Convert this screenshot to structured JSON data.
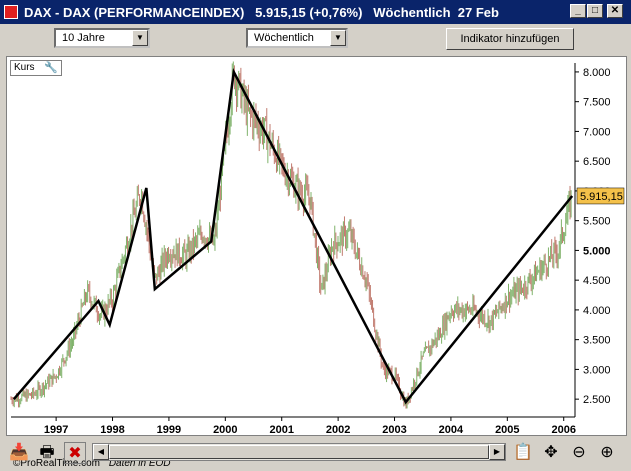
{
  "window": {
    "title": "DAX - DAX (PERFORMANCEINDEX)   5.915,15 (+0,76%)   Wöchentlich  27 Feb",
    "minimize": "_",
    "maximize": "□",
    "close": "✕"
  },
  "toolbar": {
    "period_value": "10 Jahre",
    "interval_value": "Wöchentlich",
    "add_indicator_label": "Indikator hinzufügen"
  },
  "chart_panel": {
    "label": "Kurs",
    "price_badge": "5.915,15",
    "credit": "©ProRealTime.com",
    "source": "Daten in EOD"
  },
  "icons": {
    "wrench": "wrench-icon",
    "left_tool": "tray-icon",
    "print": "printer-icon",
    "delete": "delete-icon",
    "export": "export-icon",
    "move": "move-icon",
    "zoom_out": "zoom-out-icon",
    "zoom_in": "zoom-in-icon"
  },
  "colors": {
    "title_bar": "#0a246a",
    "candle_up": "#7fb26a",
    "candle_down": "#c07a6e",
    "trend_line": "#000000",
    "badge_bg": "#f4c14a"
  },
  "chart_data": {
    "type": "candlestick",
    "x_ticks": [
      "1997",
      "1998",
      "1999",
      "2000",
      "2001",
      "2002",
      "2003",
      "2004",
      "2005",
      "2006"
    ],
    "y_ticks": [
      "2.500",
      "3.000",
      "3.500",
      "4.000",
      "4.500",
      "5.000",
      "5.500",
      "6.000",
      "6.500",
      "7.000",
      "7.500",
      "8.000"
    ],
    "ylim": [
      2200,
      8150
    ],
    "xlim": [
      1996.2,
      2006.2
    ],
    "last_value": 5915.15,
    "price_path": [
      [
        1996.2,
        2500
      ],
      [
        1996.6,
        2580
      ],
      [
        1997.0,
        2900
      ],
      [
        1997.3,
        3500
      ],
      [
        1997.55,
        4300
      ],
      [
        1997.8,
        3900
      ],
      [
        1998.0,
        4200
      ],
      [
        1998.5,
        6000
      ],
      [
        1998.75,
        4500
      ],
      [
        1999.0,
        5000
      ],
      [
        1999.3,
        4900
      ],
      [
        1999.6,
        5300
      ],
      [
        1999.8,
        5100
      ],
      [
        2000.15,
        8000
      ],
      [
        2000.4,
        7300
      ],
      [
        2000.7,
        7000
      ],
      [
        2001.0,
        6400
      ],
      [
        2001.3,
        6000
      ],
      [
        2001.5,
        5900
      ],
      [
        2001.7,
        4300
      ],
      [
        2001.9,
        5100
      ],
      [
        2002.2,
        5300
      ],
      [
        2002.5,
        4500
      ],
      [
        2002.8,
        3000
      ],
      [
        2003.0,
        2900
      ],
      [
        2003.2,
        2400
      ],
      [
        2003.5,
        3200
      ],
      [
        2003.8,
        3600
      ],
      [
        2004.0,
        4000
      ],
      [
        2004.4,
        4000
      ],
      [
        2004.7,
        3800
      ],
      [
        2005.0,
        4200
      ],
      [
        2005.3,
        4400
      ],
      [
        2005.6,
        4700
      ],
      [
        2005.9,
        5000
      ],
      [
        2006.15,
        5915
      ]
    ],
    "trend_lines": [
      {
        "x": [
          1996.25,
          1997.75,
          1997.95,
          1998.6,
          1998.75,
          1999.75,
          2000.15,
          2003.2,
          2006.15
        ],
        "y": [
          2500,
          4150,
          3750,
          6050,
          4350,
          5150,
          8000,
          2450,
          5915
        ]
      }
    ]
  }
}
